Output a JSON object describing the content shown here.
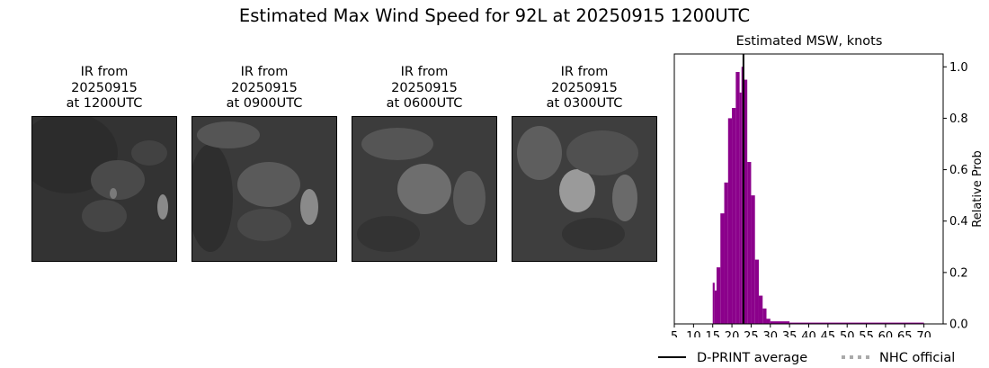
{
  "suptitle": "Estimated Max Wind Speed for 92L at 20250915 1200UTC",
  "panels": [
    {
      "line1": "IR from",
      "line2": "20250915",
      "line3": "at 1200UTC",
      "shade": "#333333"
    },
    {
      "line1": "IR from",
      "line2": "20250915",
      "line3": "at 0900UTC",
      "shade": "#3a3a3a"
    },
    {
      "line1": "IR from",
      "line2": "20250915",
      "line3": "at 0600UTC",
      "shade": "#3c3c3c"
    },
    {
      "line1": "IR from",
      "line2": "20250915",
      "line3": "at 0300UTC",
      "shade": "#3e3e3e"
    }
  ],
  "chart_data": {
    "type": "bar",
    "title": "Estimated MSW, knots",
    "xlabel": "",
    "ylabel": "Relative Prob",
    "xlim": [
      5,
      75
    ],
    "ylim": [
      0,
      1.05
    ],
    "xticks": [
      5,
      10,
      15,
      20,
      25,
      30,
      35,
      40,
      45,
      50,
      55,
      60,
      65,
      70
    ],
    "yticks": [
      0.0,
      0.2,
      0.4,
      0.6,
      0.8,
      1.0
    ],
    "ytick_labels": [
      "0.0",
      "0.2",
      "0.4",
      "0.6",
      "0.8",
      "1.0"
    ],
    "bar_color": "#8b008b",
    "bins": [
      [
        15,
        15.5,
        0.16
      ],
      [
        15.5,
        16,
        0.13
      ],
      [
        16,
        17,
        0.22
      ],
      [
        17,
        18,
        0.43
      ],
      [
        18,
        19,
        0.55
      ],
      [
        19,
        20,
        0.8
      ],
      [
        20,
        21,
        0.84
      ],
      [
        21,
        22,
        0.98
      ],
      [
        22,
        22.5,
        0.9
      ],
      [
        22.5,
        23,
        1.0
      ],
      [
        23,
        24,
        0.95
      ],
      [
        24,
        25,
        0.63
      ],
      [
        25,
        26,
        0.5
      ],
      [
        26,
        27,
        0.25
      ],
      [
        27,
        28,
        0.11
      ],
      [
        28,
        29,
        0.06
      ],
      [
        29,
        30,
        0.02
      ],
      [
        30,
        35,
        0.01
      ],
      [
        35,
        70,
        0.005
      ]
    ],
    "dprint_average": 23.0,
    "legend": [
      {
        "label": "D-PRINT average",
        "style": "solid",
        "color": "#000000"
      },
      {
        "label": "NHC official",
        "style": "dotted",
        "color": "#aaaaaa"
      }
    ]
  }
}
